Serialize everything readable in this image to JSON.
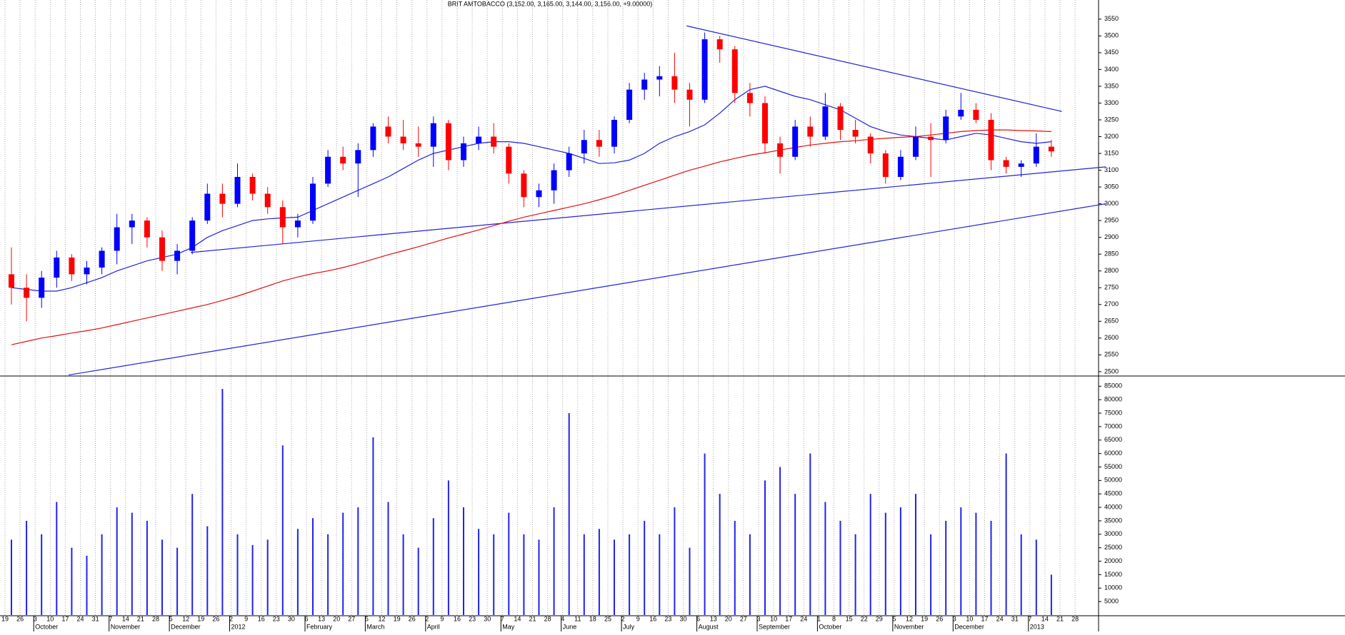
{
  "chart_data": {
    "type": "candlestick",
    "title": "BRIT AMTOBACCO (3,152.00, 3,165.00, 3,144.00, 3,156.00, +9.00000)",
    "x": [
      "19",
      "26",
      "3",
      "10",
      "17",
      "24",
      "31",
      "7",
      "14",
      "21",
      "28",
      "5",
      "12",
      "19",
      "26",
      "2",
      "9",
      "16",
      "23",
      "30",
      "6",
      "13",
      "20",
      "27",
      "5",
      "12",
      "19",
      "26",
      "2",
      "9",
      "16",
      "23",
      "30",
      "7",
      "14",
      "21",
      "28",
      "4",
      "11",
      "18",
      "25",
      "2",
      "9",
      "16",
      "23",
      "30",
      "6",
      "13",
      "20",
      "27",
      "3",
      "10",
      "17",
      "24",
      "1",
      "8",
      "15",
      "22",
      "29",
      "5",
      "12",
      "19",
      "26",
      "3",
      "10",
      "17",
      "24",
      "31",
      "7",
      "14",
      "21",
      "28"
    ],
    "months": [
      "October",
      "November",
      "December",
      "2012",
      "February",
      "March",
      "April",
      "May",
      "June",
      "July",
      "August",
      "September",
      "October",
      "November",
      "December",
      "2013"
    ],
    "open": [
      2790,
      2750,
      2720,
      2780,
      2840,
      2790,
      2810,
      2860,
      2930,
      2950,
      2900,
      2830,
      2860,
      2950,
      3030,
      3000,
      3080,
      3030,
      2990,
      2930,
      2950,
      3060,
      3140,
      3120,
      3160,
      3230,
      3200,
      3180,
      3170,
      3240,
      3130,
      3180,
      3200,
      3170,
      3090,
      3020,
      3040,
      3100,
      3150,
      3190,
      3170,
      3250,
      3340,
      3370,
      3380,
      3340,
      3310,
      3490,
      3460,
      3330,
      3300,
      3180,
      3140,
      3230,
      3200,
      3290,
      3220,
      3200,
      3150,
      3080,
      3140,
      3200,
      3190,
      3260,
      3280,
      3250,
      3130,
      3110,
      3120,
      3170,
      null,
      null
    ],
    "high": [
      2870,
      2790,
      2800,
      2860,
      2850,
      2830,
      2870,
      2970,
      2970,
      2960,
      2920,
      2880,
      2960,
      3060,
      3060,
      3120,
      3090,
      3050,
      3010,
      2970,
      3080,
      3160,
      3170,
      3180,
      3240,
      3260,
      3250,
      3230,
      3260,
      3250,
      3200,
      3230,
      3240,
      3180,
      3100,
      3060,
      3120,
      3170,
      3220,
      3220,
      3260,
      3360,
      3390,
      3410,
      3450,
      3360,
      3510,
      3500,
      3470,
      3360,
      3320,
      3200,
      3250,
      3260,
      3330,
      3300,
      3250,
      3210,
      3160,
      3160,
      3230,
      3240,
      3280,
      3330,
      3300,
      3270,
      3140,
      3130,
      3210,
      3190,
      null,
      null
    ],
    "low": [
      2700,
      2650,
      2690,
      2750,
      2770,
      2760,
      2790,
      2820,
      2880,
      2870,
      2800,
      2790,
      2850,
      2940,
      2960,
      2990,
      3010,
      2970,
      2880,
      2900,
      2940,
      3050,
      3100,
      3020,
      3140,
      3180,
      3160,
      3140,
      3110,
      3100,
      3110,
      3160,
      3150,
      3060,
      2990,
      2990,
      3000,
      3080,
      3120,
      3140,
      3150,
      3240,
      3310,
      3320,
      3300,
      3230,
      3300,
      3420,
      3300,
      3260,
      3150,
      3090,
      3130,
      3170,
      3190,
      3190,
      3180,
      3120,
      3060,
      3070,
      3130,
      3080,
      3180,
      3250,
      3240,
      3100,
      3090,
      3080,
      3110,
      3140,
      null,
      null
    ],
    "close": [
      2750,
      2720,
      2780,
      2840,
      2790,
      2810,
      2860,
      2930,
      2950,
      2900,
      2830,
      2860,
      2950,
      3030,
      3000,
      3080,
      3030,
      2990,
      2930,
      2950,
      3060,
      3140,
      3120,
      3160,
      3230,
      3200,
      3180,
      3170,
      3240,
      3130,
      3180,
      3200,
      3170,
      3090,
      3020,
      3040,
      3100,
      3150,
      3190,
      3170,
      3250,
      3340,
      3370,
      3380,
      3340,
      3310,
      3490,
      3460,
      3330,
      3300,
      3180,
      3140,
      3230,
      3200,
      3290,
      3220,
      3200,
      3150,
      3080,
      3140,
      3200,
      3190,
      3260,
      3280,
      3250,
      3130,
      3110,
      3120,
      3170,
      3156,
      null,
      null
    ],
    "up_color": "#0000ff",
    "down_color": "#ff0000",
    "series": [
      {
        "color": "#2222dd",
        "values": [
          2750,
          2745,
          2740,
          2740,
          2750,
          2765,
          2780,
          2800,
          2815,
          2830,
          2840,
          2850,
          2870,
          2900,
          2920,
          2935,
          2950,
          2955,
          2958,
          2960,
          2980,
          3000,
          3020,
          3040,
          3060,
          3080,
          3105,
          3130,
          3150,
          3160,
          3170,
          3180,
          3185,
          3185,
          3180,
          3170,
          3160,
          3150,
          3135,
          3120,
          3122,
          3130,
          3150,
          3180,
          3200,
          3215,
          3235,
          3270,
          3310,
          3340,
          3350,
          3335,
          3320,
          3310,
          3295,
          3280,
          3255,
          3230,
          3215,
          3205,
          3200,
          3195,
          3190,
          3200,
          3210,
          3205,
          3195,
          3185,
          3180,
          3185,
          null,
          null
        ]
      },
      {
        "color": "#e01010",
        "values": [
          2580,
          2590,
          2600,
          2607,
          2615,
          2622,
          2630,
          2640,
          2650,
          2660,
          2670,
          2680,
          2690,
          2700,
          2712,
          2725,
          2740,
          2755,
          2770,
          2782,
          2792,
          2800,
          2810,
          2822,
          2835,
          2848,
          2860,
          2872,
          2885,
          2898,
          2910,
          2922,
          2935,
          2948,
          2960,
          2970,
          2980,
          2990,
          3000,
          3012,
          3025,
          3040,
          3055,
          3070,
          3085,
          3100,
          3112,
          3125,
          3135,
          3145,
          3152,
          3160,
          3168,
          3175,
          3180,
          3185,
          3188,
          3192,
          3195,
          3198,
          3200,
          3205,
          3210,
          3215,
          3218,
          3220,
          3220,
          3218,
          3217,
          3215,
          null,
          null
        ]
      }
    ],
    "trendlines": [
      {
        "x": [
          11.9,
          72.6
        ],
        "y": [
          2855,
          3110
        ]
      },
      {
        "x": [
          3.8,
          72.6
        ],
        "y": [
          2490,
          3000
        ]
      },
      {
        "x": [
          44.8,
          69.7
        ],
        "y": [
          3530,
          3275
        ]
      }
    ],
    "trendline_color": "#2222dd",
    "ylim": [
      2487,
      3607
    ],
    "yticks": [
      2500,
      2550,
      2600,
      2650,
      2700,
      2750,
      2800,
      2850,
      2900,
      2950,
      3000,
      3050,
      3100,
      3150,
      3200,
      3250,
      3300,
      3350,
      3400,
      3450,
      3500,
      3550
    ],
    "grid": true,
    "volume": {
      "color": "#2222ee",
      "values": [
        28000,
        35000,
        30000,
        42000,
        25000,
        22000,
        30000,
        40000,
        38000,
        35000,
        28000,
        25000,
        45000,
        33000,
        84000,
        30000,
        26000,
        28000,
        63000,
        32000,
        36000,
        30000,
        38000,
        40000,
        66000,
        42000,
        30000,
        25000,
        36000,
        50000,
        40000,
        32000,
        30000,
        38000,
        30000,
        28000,
        40000,
        75000,
        30000,
        32000,
        28000,
        30000,
        35000,
        30000,
        40000,
        25000,
        60000,
        45000,
        35000,
        30000,
        50000,
        55000,
        45000,
        60000,
        42000,
        35000,
        30000,
        45000,
        38000,
        40000,
        45000,
        30000,
        35000,
        40000,
        38000,
        35000,
        60000,
        30000,
        28000,
        15000,
        null,
        null
      ],
      "ylim": [
        0,
        88000
      ],
      "yticks": [
        5000,
        10000,
        15000,
        20000,
        25000,
        30000,
        35000,
        40000,
        45000,
        50000,
        55000,
        60000,
        65000,
        70000,
        75000,
        80000,
        85000
      ]
    }
  }
}
